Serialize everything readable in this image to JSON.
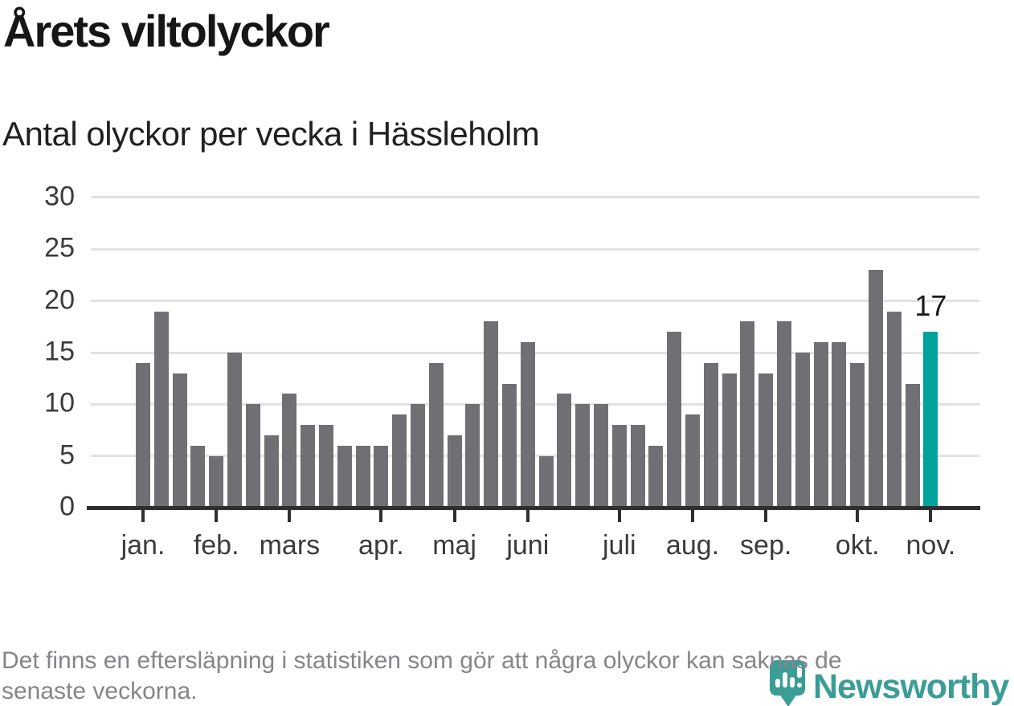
{
  "title": "Årets viltolyckor",
  "subtitle": "Antal olyckor per vecka i Hässleholm",
  "footer": {
    "lines": [
      "Det finns en eftersläpning i statistiken som gör att några olyckor kan saknas de",
      "senaste veckorna."
    ]
  },
  "logo": {
    "brand": "Newsworthy"
  },
  "chart_data": {
    "type": "bar",
    "title": "Årets viltolyckor",
    "subtitle": "Antal olyckor per vecka i Hässleholm",
    "ylabel": "Antal olyckor per vecka",
    "ylim": [
      0,
      30
    ],
    "yticks": [
      0,
      5,
      10,
      15,
      20,
      25,
      30
    ],
    "grid": true,
    "categories_note": "en stapel per vecka, januari till november",
    "values": [
      14,
      19,
      13,
      6,
      5,
      15,
      10,
      7,
      11,
      8,
      8,
      6,
      6,
      6,
      9,
      10,
      14,
      7,
      10,
      18,
      12,
      16,
      5,
      11,
      10,
      10,
      8,
      8,
      6,
      17,
      9,
      14,
      13,
      18,
      13,
      18,
      15,
      16,
      16,
      14,
      23,
      19,
      12,
      17
    ],
    "months": [
      {
        "label": "jan.",
        "week": 0
      },
      {
        "label": "feb.",
        "week": 4
      },
      {
        "label": "mars",
        "week": 8
      },
      {
        "label": "apr.",
        "week": 13
      },
      {
        "label": "maj",
        "week": 17
      },
      {
        "label": "juni",
        "week": 21
      },
      {
        "label": "juli",
        "week": 26
      },
      {
        "label": "aug.",
        "week": 30
      },
      {
        "label": "sep.",
        "week": 34
      },
      {
        "label": "okt.",
        "week": 39
      },
      {
        "label": "nov.",
        "week": 43
      }
    ],
    "highlight_index": 43,
    "highlight_value_label": "17",
    "colors": {
      "bar": "#706f74",
      "highlight": "#00a39c"
    }
  }
}
